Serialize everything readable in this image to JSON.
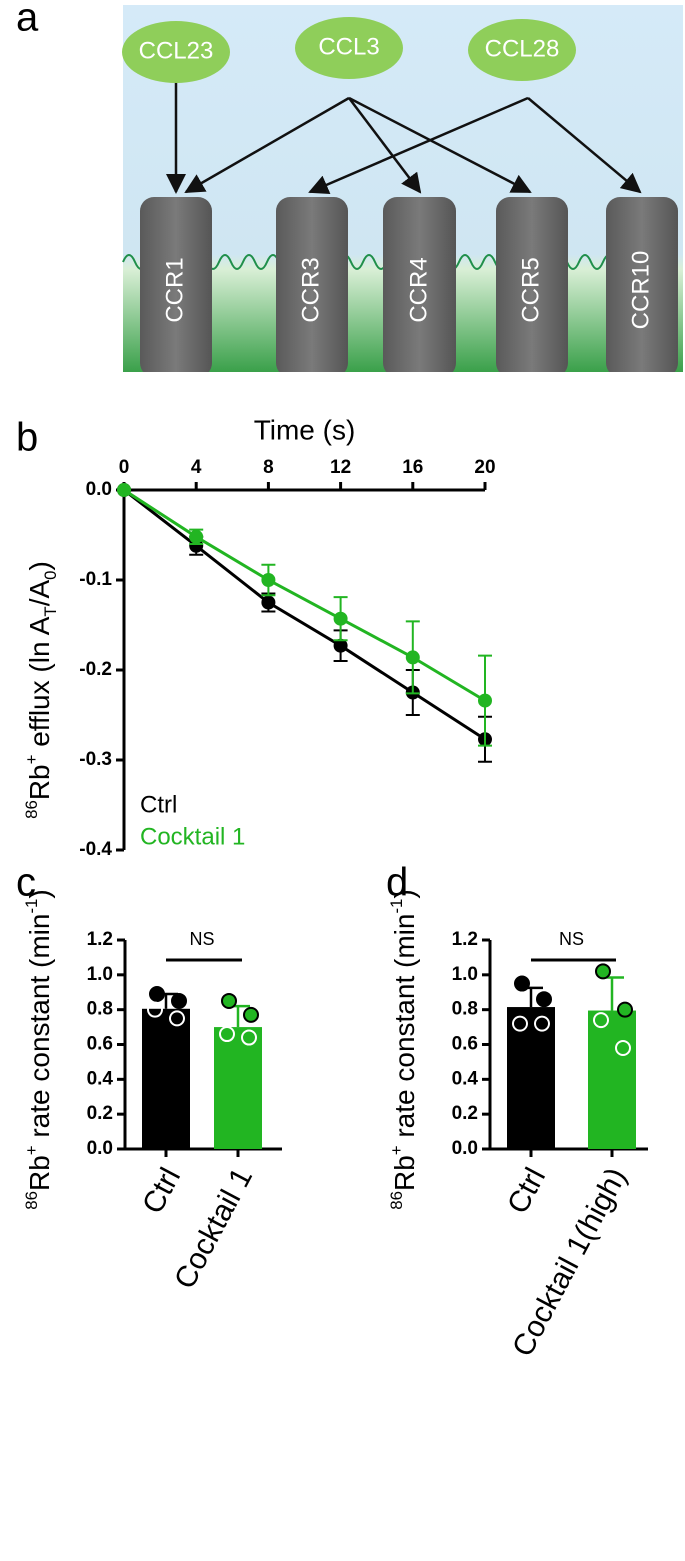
{
  "panel_a": {
    "label": "a",
    "ligands": [
      "CCL23",
      "CCL3",
      "CCL28"
    ],
    "receptors": [
      "CCR1",
      "CCR3",
      "CCR4",
      "CCR5",
      "CCR10"
    ]
  },
  "chart_data": [
    {
      "type": "line",
      "panel": "b",
      "title": "Time (s)",
      "ylabel": [
        {
          "text": "86",
          "shift": "sup"
        },
        {
          "text": "Rb"
        },
        {
          "text": "+",
          "shift": "sup"
        },
        {
          "text": " efflux (ln A"
        },
        {
          "text": "T",
          "shift": "sub"
        },
        {
          "text": "/A"
        },
        {
          "text": "0",
          "shift": "sub"
        },
        {
          "text": ")"
        }
      ],
      "x": [
        0,
        4,
        8,
        12,
        16,
        20
      ],
      "xlim": [
        0,
        20
      ],
      "xticks": [
        0,
        4,
        8,
        12,
        16,
        20
      ],
      "ylim": [
        -0.4,
        0
      ],
      "yticks": [
        {
          "value": 0,
          "label": "0.0"
        },
        -0.1,
        -0.2,
        -0.3,
        -0.4
      ],
      "series": [
        {
          "name": "Ctrl",
          "color": "#000000",
          "values": [
            0,
            -0.062,
            -0.125,
            -0.173,
            -0.225,
            -0.277
          ],
          "errors": [
            0,
            0.01,
            0.01,
            0.017,
            0.025,
            0.025
          ]
        },
        {
          "name": "Cocktail 1",
          "color": "#22b522",
          "values": [
            0,
            -0.052,
            -0.1,
            -0.143,
            -0.186,
            -0.234
          ],
          "errors": [
            0,
            0.008,
            0.017,
            0.024,
            0.04,
            0.05
          ]
        }
      ]
    },
    {
      "type": "bar",
      "panel": "c",
      "ylabel": [
        {
          "text": "86",
          "shift": "sup"
        },
        {
          "text": "Rb"
        },
        {
          "text": "+",
          "shift": "sup"
        },
        {
          "text": " rate constant (min"
        },
        {
          "text": "-1",
          "shift": "sup"
        },
        {
          "text": ")"
        }
      ],
      "categories": [
        "Ctrl",
        "Cocktail 1"
      ],
      "values": [
        0.805,
        0.7
      ],
      "errors": [
        0.085,
        0.12
      ],
      "colors": [
        "#000000",
        "#22b522"
      ],
      "points": [
        [
          0.89,
          0.85,
          0.8,
          0.75
        ],
        [
          0.85,
          0.77,
          0.66,
          0.64
        ]
      ],
      "points_filled": [
        [
          true,
          true,
          false,
          false
        ],
        [
          true,
          true,
          false,
          false
        ]
      ],
      "annotation": "NS",
      "ylim": [
        0,
        1.2
      ],
      "yticks": [
        {
          "value": 0,
          "label": "0.0"
        },
        0.2,
        0.4,
        0.6,
        0.8,
        {
          "value": 1,
          "label": "1.0"
        },
        1.2
      ]
    },
    {
      "type": "bar",
      "panel": "d",
      "ylabel": [
        {
          "text": "86",
          "shift": "sup"
        },
        {
          "text": "Rb"
        },
        {
          "text": "+",
          "shift": "sup"
        },
        {
          "text": " rate constant (min"
        },
        {
          "text": "-1",
          "shift": "sup"
        },
        {
          "text": ")"
        }
      ],
      "categories": [
        "Ctrl",
        "Cocktail 1(high)"
      ],
      "values": [
        0.815,
        0.795
      ],
      "errors": [
        0.11,
        0.19
      ],
      "colors": [
        "#000000",
        "#22b522"
      ],
      "points": [
        [
          0.95,
          0.86,
          0.72,
          0.72
        ],
        [
          1.02,
          0.8,
          0.74,
          0.58
        ]
      ],
      "points_filled": [
        [
          true,
          true,
          false,
          false
        ],
        [
          true,
          true,
          false,
          false
        ]
      ],
      "annotation": "NS",
      "ylim": [
        0,
        1.2
      ],
      "yticks": [
        {
          "value": 0,
          "label": "0.0"
        },
        0.2,
        0.4,
        0.6,
        0.8,
        {
          "value": 1,
          "label": "1.0"
        },
        1.2
      ]
    }
  ]
}
